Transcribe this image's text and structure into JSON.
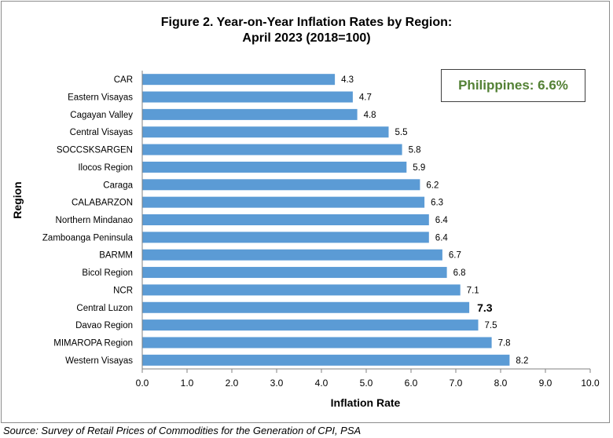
{
  "title_line1": "Figure 2. Year-on-Year Inflation Rates by Region:",
  "title_line2": "April 2023 (2018=100)",
  "callout": "Philippines: 6.6%",
  "source": "Source: Survey of Retail Prices of Commodities for the Generation of CPI, PSA",
  "colors": {
    "bar": "#5b9bd5",
    "axis": "#808080",
    "callout_text": "#538135"
  },
  "chart_data": {
    "type": "bar",
    "orientation": "horizontal",
    "title": "Figure 2. Year-on-Year Inflation Rates by Region: April 2023 (2018=100)",
    "xlabel": "Inflation Rate",
    "ylabel": "Region",
    "xlim": [
      0,
      10
    ],
    "xticks": [
      "0.0",
      "1.0",
      "2.0",
      "3.0",
      "4.0",
      "5.0",
      "6.0",
      "7.0",
      "8.0",
      "9.0",
      "10.0"
    ],
    "grid": false,
    "categories": [
      "CAR",
      "Eastern Visayas",
      "Cagayan Valley",
      "Central Visayas",
      "SOCCSKSARGEN",
      "Ilocos Region",
      "Caraga",
      "CALABARZON",
      "Northern Mindanao",
      "Zamboanga Peninsula",
      "BARMM",
      "Bicol Region",
      "NCR",
      "Central Luzon",
      "Davao Region",
      "MIMAROPA Region",
      "Western Visayas"
    ],
    "values": [
      4.3,
      4.7,
      4.8,
      5.5,
      5.8,
      5.9,
      6.2,
      6.3,
      6.4,
      6.4,
      6.7,
      6.8,
      7.1,
      7.3,
      7.5,
      7.8,
      8.2
    ],
    "labels": [
      "4.3",
      "4.7",
      "4.8",
      "5.5",
      "5.8",
      "5.9",
      "6.2",
      "6.3",
      "6.4",
      "6.4",
      "6.7",
      "6.8",
      "7.1",
      "7.3",
      "7.5",
      "7.8",
      "8.2"
    ],
    "highlight": "Central Luzon"
  }
}
